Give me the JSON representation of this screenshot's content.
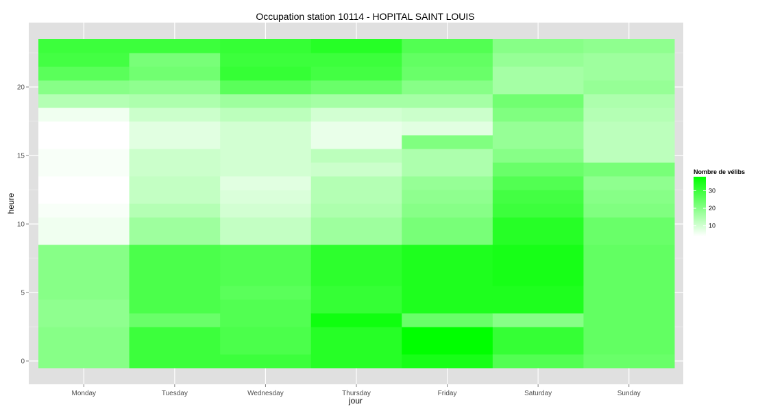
{
  "chart_data": {
    "type": "heatmap",
    "title": "Occupation station 10114 - HOPITAL SAINT LOUIS",
    "xlabel": "jour",
    "ylabel": "heure",
    "x_categories": [
      "Monday",
      "Tuesday",
      "Wednesday",
      "Thursday",
      "Friday",
      "Saturday",
      "Sunday"
    ],
    "y_values": [
      0,
      1,
      2,
      3,
      4,
      5,
      6,
      7,
      8,
      9,
      10,
      11,
      12,
      13,
      14,
      15,
      16,
      17,
      18,
      19,
      20,
      21,
      22,
      23
    ],
    "y_ticks": [
      0,
      5,
      10,
      15,
      20
    ],
    "ylim": [
      -0.5,
      23.5
    ],
    "grid": true,
    "legend": {
      "title": "Nombre de vélibs",
      "position": "right",
      "ticks": [
        10,
        20,
        30
      ],
      "range": [
        4,
        38
      ],
      "color_low": "#ffffff",
      "color_high": "#00ff00"
    },
    "values": [
      [
        20,
        20,
        20,
        19,
        19,
        20,
        20,
        20,
        20,
        6,
        6,
        5,
        4,
        4,
        5,
        5,
        4,
        4,
        6,
        14,
        20,
        26,
        29,
        30
      ],
      [
        30,
        30,
        30,
        24,
        28,
        28,
        28,
        28,
        28,
        17,
        17,
        14,
        12,
        12,
        11,
        11,
        8,
        8,
        11,
        15,
        19,
        23,
        22,
        30
      ],
      [
        30,
        28,
        28,
        27,
        27,
        26,
        27,
        27,
        27,
        12,
        12,
        10,
        9,
        8,
        10,
        10,
        10,
        10,
        13,
        17,
        26,
        31,
        30,
        31
      ],
      [
        33,
        33,
        33,
        36,
        31,
        31,
        32,
        32,
        32,
        17,
        17,
        15,
        14,
        14,
        11,
        13,
        7,
        7,
        10,
        16,
        24,
        29,
        30,
        33
      ],
      [
        35,
        38,
        38,
        24,
        34,
        34,
        34,
        34,
        34,
        22,
        22,
        20,
        19,
        18,
        15,
        15,
        21,
        8,
        11,
        16,
        20,
        24,
        25,
        27
      ],
      [
        27,
        31,
        31,
        20,
        34,
        34,
        35,
        35,
        35,
        33,
        33,
        30,
        29,
        27,
        24,
        20,
        18,
        18,
        21,
        23,
        16,
        16,
        18,
        20
      ],
      [
        24,
        25,
        25,
        25,
        25,
        25,
        25,
        25,
        25,
        24,
        24,
        21,
        20,
        19,
        22,
        13,
        13,
        13,
        14,
        15,
        18,
        17,
        17,
        19
      ]
    ]
  }
}
